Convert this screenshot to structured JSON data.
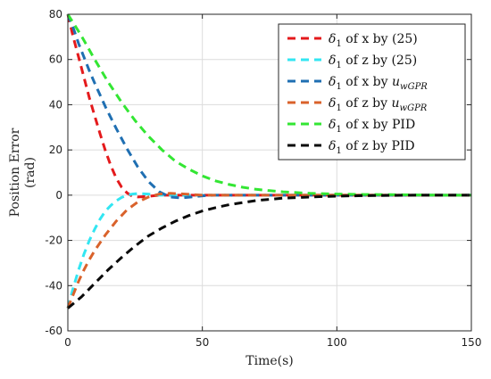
{
  "chart_data": {
    "type": "line",
    "title": "",
    "xlabel": "Time(s)",
    "ylabel_line1": "Position Error",
    "ylabel_line2": "(rad)",
    "xlim": [
      0,
      150
    ],
    "ylim": [
      -60,
      80
    ],
    "xticks": [
      0,
      50,
      100,
      150
    ],
    "yticks": [
      -60,
      -40,
      -20,
      0,
      20,
      40,
      60,
      80
    ],
    "grid": true,
    "legend_position": "top-right",
    "series": [
      {
        "label_main": "δ",
        "label_sub": "1",
        "label_rest": " of x by (25)",
        "label_math": "",
        "color": "#e41a1c",
        "x": [
          0,
          2,
          4,
          6,
          8,
          10,
          12,
          14,
          16,
          18,
          20,
          22,
          24,
          26,
          30,
          34,
          40,
          50,
          60,
          80,
          100,
          120,
          150
        ],
        "y": [
          80,
          70,
          61,
          52,
          43,
          35,
          27,
          19.5,
          13,
          7.5,
          3.5,
          1,
          -0.5,
          -0.8,
          -0.5,
          0,
          0,
          0,
          0,
          0,
          0,
          0,
          0
        ]
      },
      {
        "label_main": "δ",
        "label_sub": "1",
        "label_rest": " of z by (25)",
        "label_math": "",
        "color": "#33e6f2",
        "x": [
          0,
          2,
          4,
          6,
          8,
          10,
          12,
          14,
          16,
          18,
          20,
          22,
          24,
          26,
          30,
          34,
          40,
          50,
          60,
          80,
          100,
          150
        ],
        "y": [
          -50,
          -41,
          -33,
          -26,
          -20,
          -15,
          -10.5,
          -7,
          -4.5,
          -2.5,
          -1,
          0,
          0.5,
          0.7,
          0.5,
          0,
          0,
          0,
          0,
          0,
          0,
          0
        ]
      },
      {
        "label_main": "δ",
        "label_sub": "1",
        "label_rest": " of x by ",
        "label_math": "u",
        "label_math_sub": "wGPR",
        "color": "#1f6fb2",
        "x": [
          0,
          2,
          4,
          6,
          8,
          10,
          14,
          18,
          22,
          26,
          30,
          34,
          38,
          42,
          46,
          50,
          55,
          60,
          70,
          80,
          100,
          120,
          150
        ],
        "y": [
          80,
          74,
          67,
          61,
          55,
          49.5,
          39,
          29.5,
          20.5,
          12.5,
          6,
          1.5,
          -0.8,
          -1.2,
          -0.8,
          -0.3,
          0,
          0,
          0,
          0,
          0,
          0,
          0
        ]
      },
      {
        "label_main": "δ",
        "label_sub": "1",
        "label_rest": " of z by ",
        "label_math": "u",
        "label_math_sub": "wGPR",
        "color": "#d9622b",
        "x": [
          0,
          2,
          4,
          6,
          8,
          10,
          14,
          18,
          22,
          26,
          30,
          34,
          38,
          42,
          46,
          50,
          55,
          60,
          70,
          80,
          100,
          150
        ],
        "y": [
          -50,
          -44,
          -38,
          -33,
          -28.5,
          -24.5,
          -17.5,
          -11.5,
          -6.5,
          -3,
          -0.8,
          0.5,
          0.8,
          0.6,
          0.3,
          0,
          0,
          0,
          0,
          0,
          0,
          0
        ]
      },
      {
        "label_main": "δ",
        "label_sub": "1",
        "label_rest": " of x by PID",
        "label_math": "",
        "color": "#33e633",
        "x": [
          0,
          5,
          10,
          15,
          20,
          25,
          30,
          35,
          40,
          45,
          50,
          55,
          60,
          65,
          70,
          75,
          80,
          90,
          100,
          110,
          120,
          130,
          140,
          150
        ],
        "y": [
          80,
          70.5,
          60,
          50,
          41,
          33,
          26,
          20,
          15,
          11.5,
          8.5,
          6.3,
          4.7,
          3.5,
          2.6,
          2,
          1.5,
          0.8,
          0.5,
          0.3,
          0.2,
          0.1,
          0,
          0
        ]
      },
      {
        "label_main": "δ",
        "label_sub": "1",
        "label_rest": " of z by PID",
        "label_math": "",
        "color": "#0a0a0a",
        "x": [
          0,
          5,
          10,
          15,
          20,
          25,
          30,
          35,
          40,
          45,
          50,
          55,
          60,
          70,
          80,
          90,
          100,
          110,
          120,
          130,
          140,
          150
        ],
        "y": [
          -50,
          -45,
          -39,
          -33,
          -27.5,
          -22.5,
          -18,
          -14.5,
          -11.5,
          -9,
          -7,
          -5.5,
          -4.2,
          -2.4,
          -1.3,
          -0.8,
          -0.4,
          -0.2,
          -0.1,
          0,
          0,
          0
        ]
      }
    ]
  }
}
